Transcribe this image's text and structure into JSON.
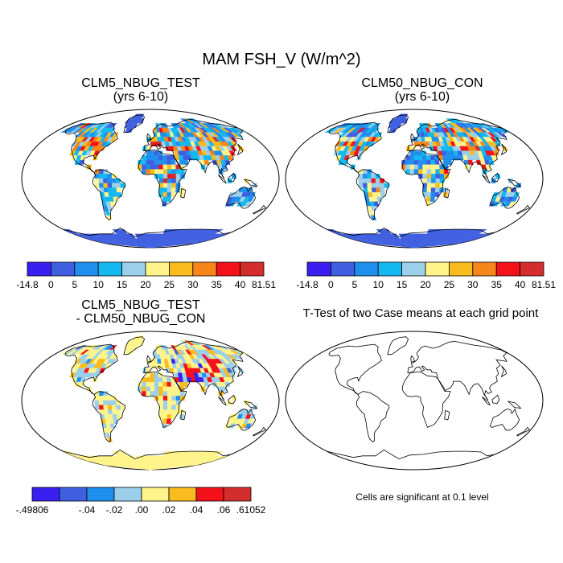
{
  "title": "MAM FSH_V (W/m^2)",
  "panels": [
    {
      "id": "p1",
      "title_line1": "CLM5_NBUG_TEST",
      "title_line2": "(yrs 6-10)"
    },
    {
      "id": "p2",
      "title_line1": "CLM50_NBUG_CON",
      "title_line2": "(yrs 6-10)"
    },
    {
      "id": "p3",
      "title_line1": "CLM5_NBUG_TEST",
      "title_line2": "- CLM50_NBUG_CON"
    },
    {
      "id": "p4",
      "title_line1": "T-Test of two Case means at each grid point"
    }
  ],
  "significance_note": "Cells are significant at 0.1 level",
  "colorbars": [
    {
      "id": "cb1",
      "colors": [
        "#3a1ff0",
        "#3f5fe0",
        "#1f8fee",
        "#14b8f0",
        "#9ccfea",
        "#fef48a",
        "#f8bc1e",
        "#f7861a",
        "#f3111a",
        "#d42d2e"
      ],
      "labels": [
        "-14.8",
        "0",
        "5",
        "10",
        "15",
        "20",
        "25",
        "30",
        "35",
        "40",
        "81.51"
      ]
    },
    {
      "id": "cb2",
      "colors": [
        "#3a1ff0",
        "#3f5fe0",
        "#1f8fee",
        "#14b8f0",
        "#9ccfea",
        "#fef48a",
        "#f8bc1e",
        "#f7861a",
        "#f3111a",
        "#d42d2e"
      ],
      "labels": [
        "-14.8",
        "0",
        "5",
        "10",
        "15",
        "20",
        "25",
        "30",
        "35",
        "40",
        "81.51"
      ]
    },
    {
      "id": "cb3",
      "colors": [
        "#3a1ff0",
        "#3f5fe0",
        "#1f8fee",
        "#9ccfea",
        "#fef48a",
        "#f8bc1e",
        "#f3111a",
        "#d42d2e"
      ],
      "labels": [
        "-.49806",
        "-.04",
        "-.02",
        ".00",
        ".02",
        ".04",
        ".06",
        ".61052"
      ],
      "label_positions": [
        0,
        2,
        3,
        4,
        5,
        6,
        7,
        8
      ]
    }
  ],
  "map_colors": {
    "ocean": "#ffffff",
    "outline": "#000000"
  }
}
